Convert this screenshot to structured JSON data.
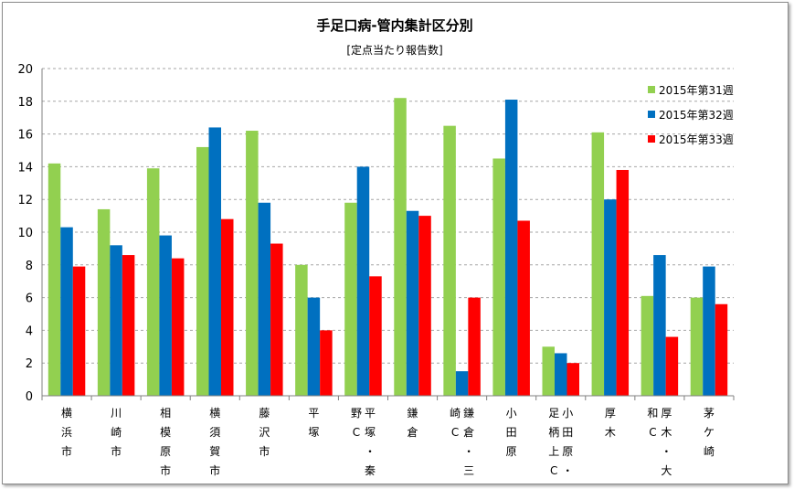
{
  "chart_data": {
    "type": "bar",
    "title": "手足口病-管内集計区分別",
    "subtitle": "[定点当たり報告数]",
    "ylim": [
      0,
      20
    ],
    "ytick_step": 2,
    "grid": true,
    "legend_position": "top-right",
    "categories": [
      "横浜市",
      "川崎市",
      "相模原市",
      "横須賀市",
      "藤沢市",
      "平塚",
      "平塚・秦野C",
      "鎌倉",
      "鎌倉・三崎C",
      "小田原",
      "小田原・足柄上C",
      "厚木",
      "厚木・大和C",
      "茅ケ崎"
    ],
    "category_label_columns": [
      [
        "横浜市"
      ],
      [
        "川崎市"
      ],
      [
        "相模原市"
      ],
      [
        "横須賀市"
      ],
      [
        "藤沢市"
      ],
      [
        "平塚"
      ],
      [
        "平塚・秦",
        "野C"
      ],
      [
        "鎌倉"
      ],
      [
        "鎌倉・三",
        "崎C"
      ],
      [
        "小田原"
      ],
      [
        "小田原・",
        "足柄上C"
      ],
      [
        "厚木"
      ],
      [
        "厚木・大",
        "和C"
      ],
      [
        "茅ケ崎"
      ]
    ],
    "series": [
      {
        "name": "2015年第31週",
        "color": "#92d050",
        "values": [
          14.2,
          11.4,
          13.9,
          15.2,
          16.2,
          8.0,
          11.8,
          18.2,
          16.5,
          14.5,
          3.0,
          16.1,
          6.1,
          6.0
        ]
      },
      {
        "name": "2015年第32週",
        "color": "#0070c0",
        "values": [
          10.3,
          9.2,
          9.8,
          16.4,
          11.8,
          6.0,
          14.0,
          11.3,
          1.5,
          18.1,
          2.6,
          12.0,
          8.6,
          7.9
        ]
      },
      {
        "name": "2015年第33週",
        "color": "#ff0000",
        "values": [
          7.9,
          8.6,
          8.4,
          10.8,
          9.3,
          4.0,
          7.3,
          11.0,
          6.0,
          10.7,
          2.0,
          13.8,
          3.6,
          5.6
        ]
      }
    ]
  }
}
